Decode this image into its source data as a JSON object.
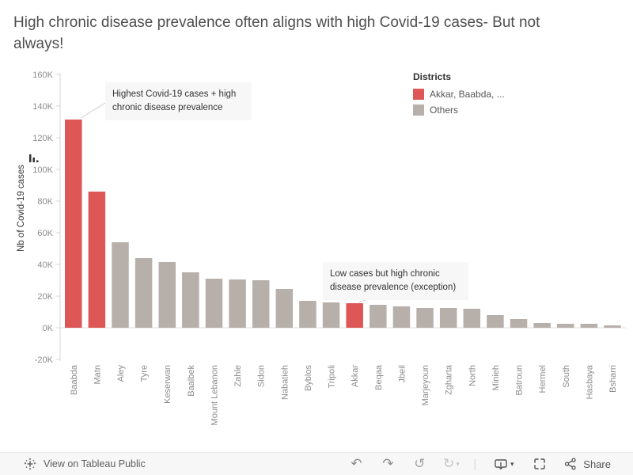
{
  "title": "High chronic disease prevalence often aligns with high Covid-19 cases- But not always!",
  "legend": {
    "title": "Districts",
    "items": [
      {
        "label": "Akkar, Baabda, ...",
        "color": "#DD5757"
      },
      {
        "label": "Others",
        "color": "#B7AFAA"
      }
    ]
  },
  "annotations": [
    {
      "text": "Highest Covid-19 cases + high chronic disease prevalence",
      "points_to": "Baabda"
    },
    {
      "text": "Low cases but high chronic disease prevalence (exception)",
      "points_to": "Akkar"
    }
  ],
  "chart_data": {
    "type": "bar",
    "title": "High chronic disease prevalence often aligns with high Covid-19 cases- But not always!",
    "categories": [
      "Baabda",
      "Matn",
      "Aley",
      "Tyre",
      "Keserwan",
      "Baalbek",
      "Mount Lebanon",
      "Zahle",
      "Sidon",
      "Nabatieh",
      "Byblos",
      "Tripoli",
      "Akkar",
      "Beqaa",
      "Jbeil",
      "Marjeyoun",
      "Zgharta",
      "North",
      "Minieh",
      "Batroun",
      "Hermel",
      "South",
      "Hasbaya",
      "Bsharri"
    ],
    "values": [
      131500,
      86000,
      54000,
      44000,
      41500,
      35000,
      31000,
      30500,
      30000,
      24500,
      17000,
      16000,
      15500,
      14500,
      13500,
      12500,
      12500,
      12000,
      8000,
      5500,
      3000,
      2500,
      2500,
      1500
    ],
    "highlighted_categories": [
      "Baabda",
      "Matn",
      "Akkar"
    ],
    "highlight_color": "#DD5757",
    "default_color": "#B7AFAA",
    "xlabel": "",
    "ylabel": "Nb of Covid-19 cases",
    "ylim": [
      -20000,
      160000
    ],
    "ytick_step": 20000,
    "ytick_labels": [
      "-20K",
      "0K",
      "20K",
      "40K",
      "60K",
      "80K",
      "100K",
      "120K",
      "140K",
      "160K"
    ],
    "grid": false,
    "legend_position": "top-right",
    "sorted": "descending"
  },
  "toolbar": {
    "view_label": "View on Tableau Public",
    "share_label": "Share",
    "icons": [
      "tableau-logo-icon",
      "undo-icon",
      "redo-icon",
      "revert-icon",
      "refresh-icon",
      "download-icon",
      "fullscreen-icon",
      "share-icon"
    ]
  }
}
